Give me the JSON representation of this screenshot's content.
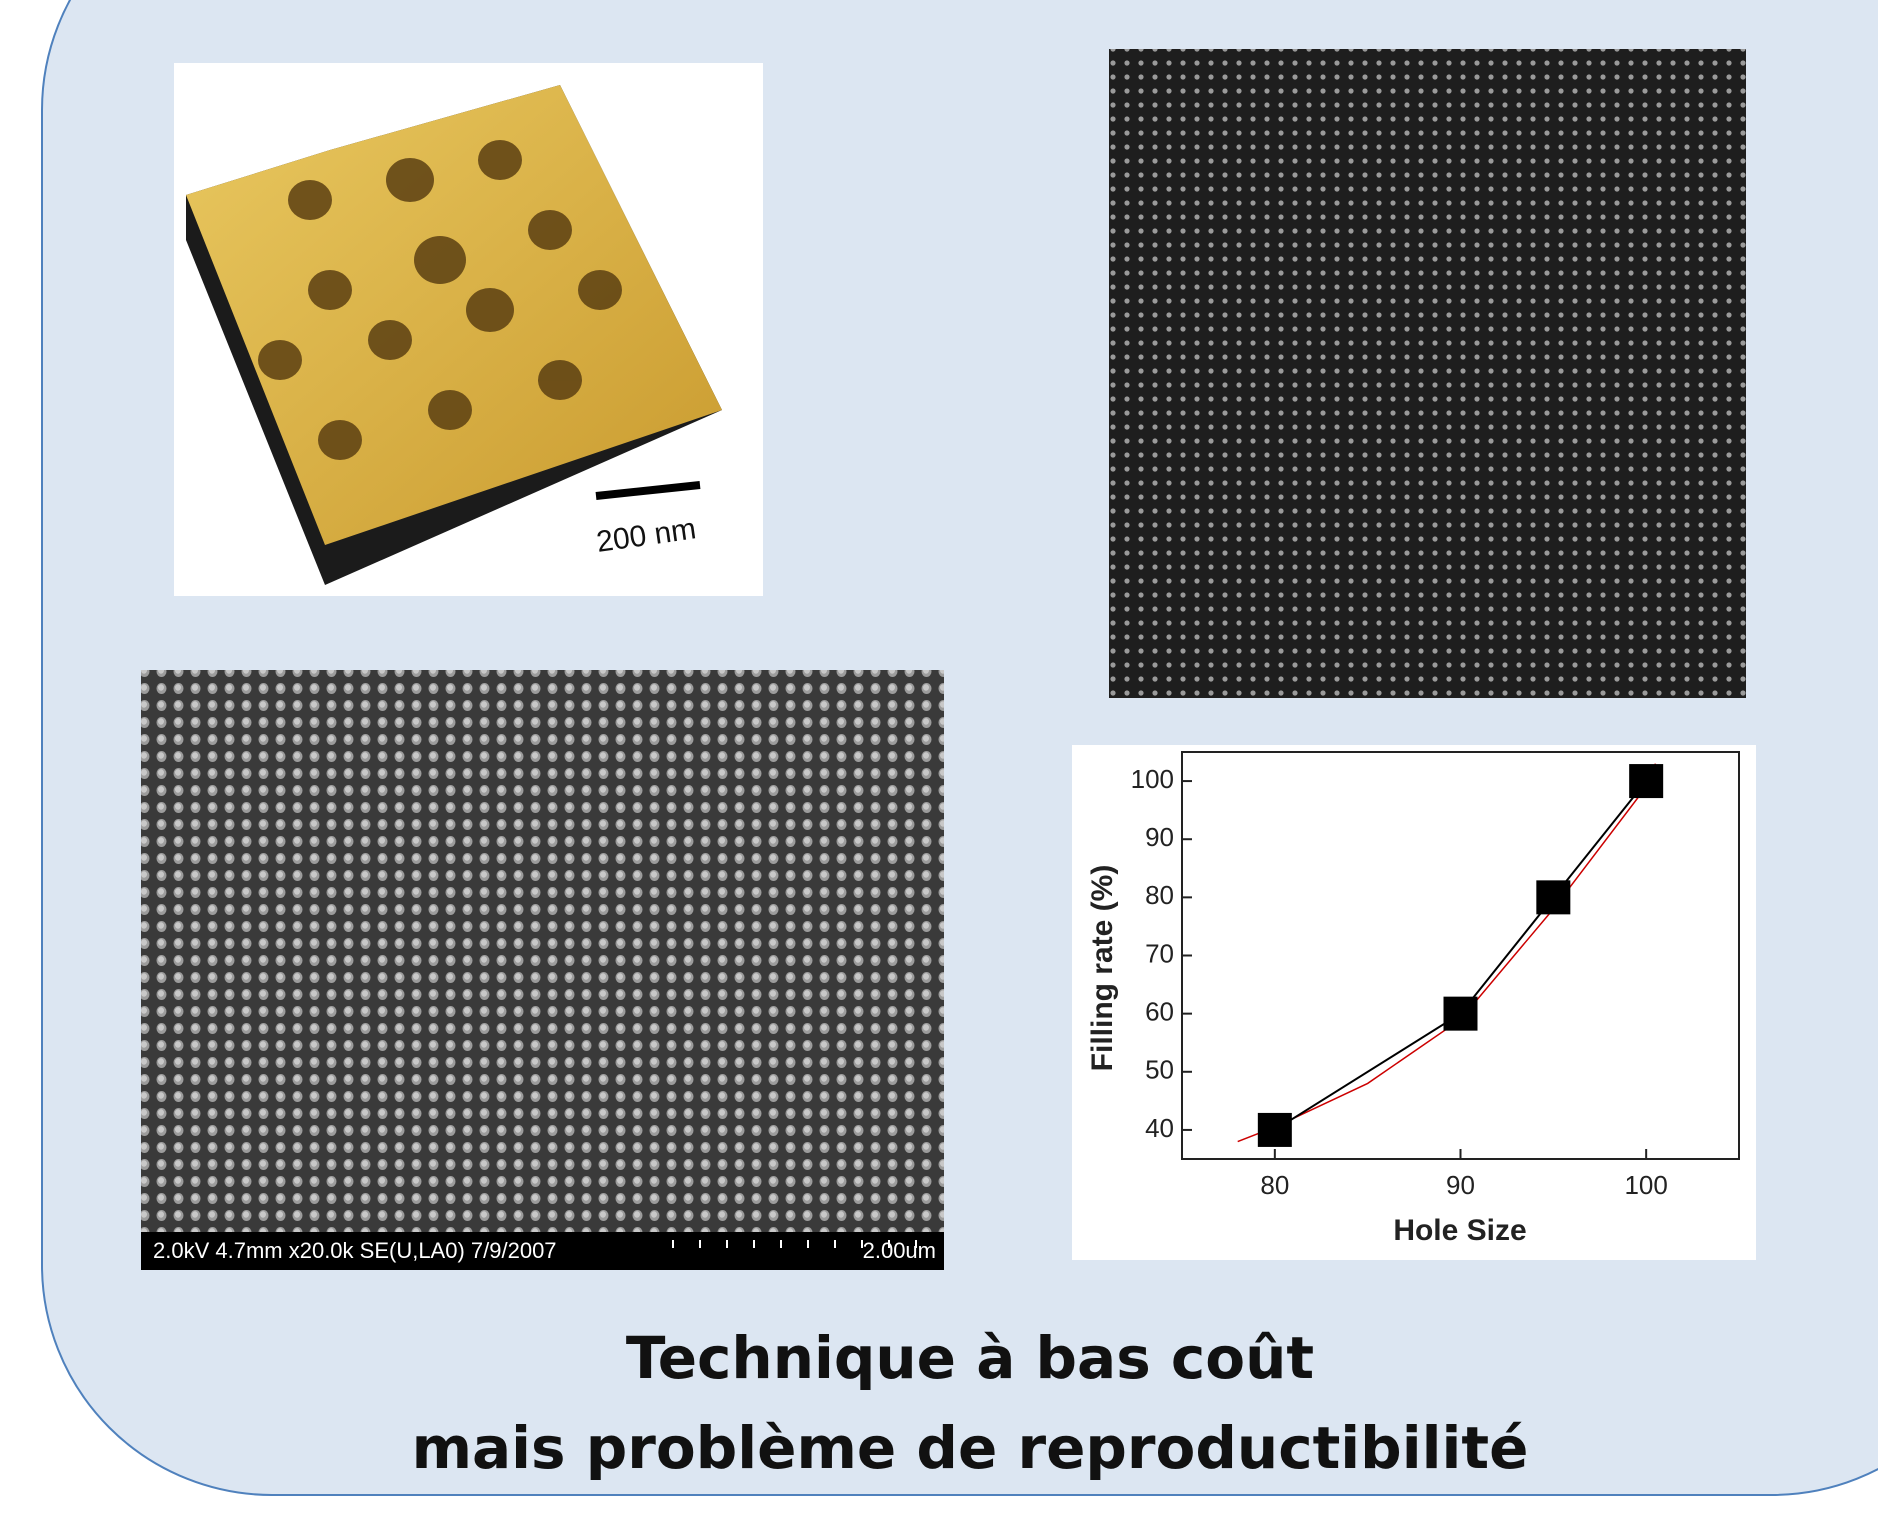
{
  "slide": {
    "title_line1": "Technique à bas coût",
    "title_line2": "mais problème de reproductibilité"
  },
  "afm_image": {
    "scale_label": "200 nm"
  },
  "sem_image": {
    "info": "2.0kV 4.7mm x20.0k SE(U,LA0) 7/9/2007",
    "scale_label": "2.00um"
  },
  "chart_data": {
    "type": "scatter",
    "xlabel": "Hole Size",
    "ylabel": "Filling rate (%)",
    "xlim": [
      75,
      105
    ],
    "ylim": [
      35,
      105
    ],
    "xticks": [
      80,
      90,
      100
    ],
    "yticks": [
      40,
      50,
      60,
      70,
      80,
      90,
      100
    ],
    "series": [
      {
        "color": "#000000",
        "x": [
          80,
          90,
          95,
          100
        ],
        "values": [
          40,
          60,
          80,
          100
        ]
      },
      {
        "color": "#cc0000",
        "x": [
          78,
          80,
          85,
          90,
          95,
          100,
          100.5
        ],
        "values": [
          38,
          40.5,
          48,
          59,
          78,
          99,
          103
        ]
      }
    ]
  }
}
